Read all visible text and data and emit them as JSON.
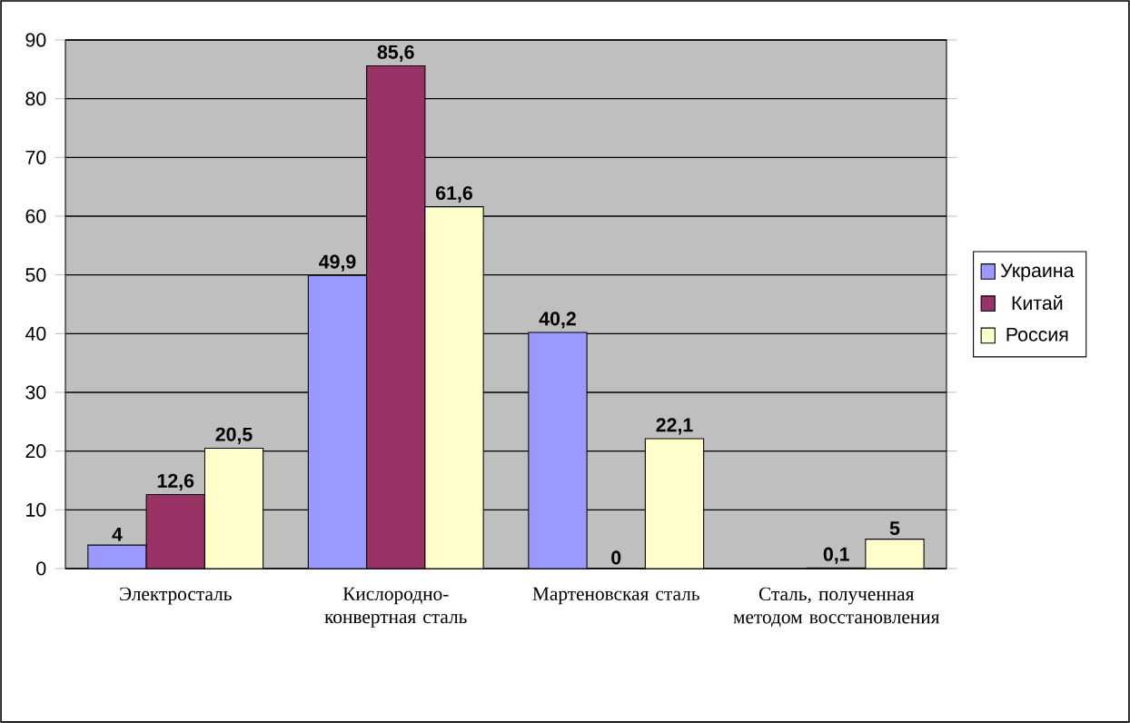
{
  "chart_data": {
    "type": "bar",
    "categories": [
      "Электросталь",
      "Кислородно-конвертная сталь",
      "Мартеновская сталь",
      "Сталь, полученная методом восстановления"
    ],
    "series": [
      {
        "name": "Украина",
        "color": "#9999ff",
        "values": [
          4,
          49.9,
          40.2,
          null
        ],
        "value_labels": [
          "4",
          "49,9",
          "40,2",
          null
        ]
      },
      {
        "name": "Китай",
        "color": "#993366",
        "values": [
          12.6,
          85.6,
          0,
          0.1
        ],
        "value_labels": [
          "12,6",
          "85,6",
          "0",
          "0,1"
        ]
      },
      {
        "name": "Россия",
        "color": "#ffffcc",
        "values": [
          20.5,
          61.6,
          22.1,
          5
        ],
        "value_labels": [
          "20,5",
          "61,6",
          "22,1",
          "5"
        ]
      }
    ],
    "ylim": [
      0,
      90
    ],
    "yticks": [
      0,
      10,
      20,
      30,
      40,
      50,
      60,
      70,
      80,
      90
    ],
    "grid": "y",
    "legend": "right"
  }
}
